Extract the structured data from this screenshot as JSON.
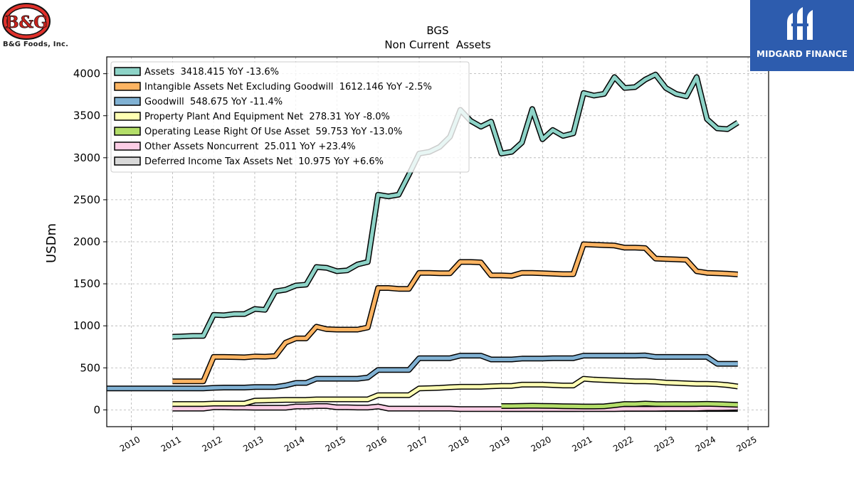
{
  "brand": {
    "left_logo_text": "B&G",
    "left_caption": "B&G Foods, Inc.",
    "right_caption": "MIDGARD FINANCE"
  },
  "chart_data": {
    "type": "line",
    "title": "BGS",
    "subtitle": "Non Current  Assets",
    "ylabel": "USDm",
    "xlabel": "",
    "xlim": [
      2009.4,
      2025.5
    ],
    "ylim": [
      -200,
      4200
    ],
    "xticks": [
      "2010",
      "2011",
      "2012",
      "2013",
      "2014",
      "2015",
      "2016",
      "2017",
      "2018",
      "2019",
      "2020",
      "2021",
      "2022",
      "2023",
      "2024",
      "2025"
    ],
    "yticks": [
      0,
      500,
      1000,
      1500,
      2000,
      2500,
      3000,
      3500,
      4000
    ],
    "grid": true,
    "legend_position": "top-left",
    "series": [
      {
        "name": "Assets  3418.415 YoY -13.6%",
        "color": "#8dd3c7",
        "x": [
          2011.0,
          2011.25,
          2011.5,
          2011.75,
          2012.0,
          2012.25,
          2012.5,
          2012.75,
          2013.0,
          2013.25,
          2013.5,
          2013.75,
          2014.0,
          2014.25,
          2014.5,
          2014.75,
          2015.0,
          2015.25,
          2015.5,
          2015.75,
          2016.0,
          2016.25,
          2016.5,
          2016.75,
          2017.0,
          2017.25,
          2017.5,
          2017.75,
          2018.0,
          2018.25,
          2018.5,
          2018.75,
          2019.0,
          2019.25,
          2019.5,
          2019.75,
          2020.0,
          2020.25,
          2020.5,
          2020.75,
          2021.0,
          2021.25,
          2021.5,
          2021.75,
          2022.0,
          2022.25,
          2022.5,
          2022.75,
          2023.0,
          2023.25,
          2023.5,
          2023.75,
          2024.0,
          2024.25,
          2024.5,
          2024.75
        ],
        "values": [
          870,
          875,
          880,
          880,
          1130,
          1125,
          1140,
          1140,
          1200,
          1190,
          1410,
          1430,
          1480,
          1490,
          1700,
          1690,
          1650,
          1660,
          1730,
          1760,
          2560,
          2540,
          2560,
          2800,
          3050,
          3070,
          3130,
          3250,
          3570,
          3440,
          3370,
          3430,
          3050,
          3070,
          3180,
          3580,
          3220,
          3330,
          3260,
          3290,
          3770,
          3740,
          3760,
          3960,
          3830,
          3840,
          3930,
          3990,
          3830,
          3760,
          3730,
          3960,
          3460,
          3350,
          3340,
          3418
        ]
      },
      {
        "name": "Intangible Assets Net Excluding Goodwill  1612.146 YoY -2.5%",
        "color": "#fdb462",
        "x": [
          2011.0,
          2011.25,
          2011.5,
          2011.75,
          2012.0,
          2012.25,
          2012.5,
          2012.75,
          2013.0,
          2013.25,
          2013.5,
          2013.75,
          2014.0,
          2014.25,
          2014.5,
          2014.75,
          2015.0,
          2015.25,
          2015.5,
          2015.75,
          2016.0,
          2016.25,
          2016.5,
          2016.75,
          2017.0,
          2017.25,
          2017.5,
          2017.75,
          2018.0,
          2018.25,
          2018.5,
          2018.75,
          2019.0,
          2019.25,
          2019.5,
          2019.75,
          2020.0,
          2020.25,
          2020.5,
          2020.75,
          2021.0,
          2021.25,
          2021.5,
          2021.75,
          2022.0,
          2022.25,
          2022.5,
          2022.75,
          2023.0,
          2023.25,
          2023.5,
          2023.75,
          2024.0,
          2024.25,
          2024.5,
          2024.75
        ],
        "values": [
          340,
          340,
          340,
          340,
          630,
          630,
          628,
          625,
          635,
          633,
          640,
          800,
          850,
          850,
          990,
          960,
          955,
          955,
          955,
          980,
          1450,
          1450,
          1440,
          1440,
          1630,
          1630,
          1625,
          1625,
          1760,
          1760,
          1755,
          1600,
          1600,
          1595,
          1630,
          1630,
          1625,
          1620,
          1615,
          1615,
          1970,
          1965,
          1960,
          1955,
          1930,
          1930,
          1925,
          1800,
          1795,
          1790,
          1785,
          1650,
          1630,
          1625,
          1620,
          1612
        ]
      },
      {
        "name": "Goodwill  548.675 YoY -11.4%",
        "color": "#80b1d3",
        "x": [
          2009.0,
          2009.25,
          2009.5,
          2009.75,
          2010.0,
          2010.25,
          2010.5,
          2010.75,
          2011.0,
          2011.25,
          2011.5,
          2011.75,
          2012.0,
          2012.25,
          2012.5,
          2012.75,
          2013.0,
          2013.25,
          2013.5,
          2013.75,
          2014.0,
          2014.25,
          2014.5,
          2014.75,
          2015.0,
          2015.25,
          2015.5,
          2015.75,
          2016.0,
          2016.25,
          2016.5,
          2016.75,
          2017.0,
          2017.25,
          2017.5,
          2017.75,
          2018.0,
          2018.25,
          2018.5,
          2018.75,
          2019.0,
          2019.25,
          2019.5,
          2019.75,
          2020.0,
          2020.25,
          2020.5,
          2020.75,
          2021.0,
          2021.25,
          2021.5,
          2021.75,
          2022.0,
          2022.25,
          2022.5,
          2022.75,
          2023.0,
          2023.25,
          2023.5,
          2023.75,
          2024.0,
          2024.25,
          2024.5,
          2024.75
        ],
        "values": [
          255,
          255,
          255,
          255,
          255,
          255,
          255,
          255,
          255,
          255,
          255,
          255,
          262,
          265,
          265,
          265,
          272,
          272,
          272,
          290,
          320,
          320,
          370,
          370,
          370,
          370,
          370,
          385,
          475,
          475,
          475,
          475,
          615,
          615,
          615,
          615,
          645,
          645,
          645,
          600,
          600,
          600,
          610,
          610,
          610,
          615,
          615,
          615,
          645,
          645,
          645,
          645,
          645,
          645,
          648,
          630,
          630,
          630,
          630,
          630,
          630,
          548,
          548,
          548
        ]
      },
      {
        "name": "Property Plant And Equipment Net  278.31 YoY -8.0%",
        "color": "#ffffb3",
        "x": [
          2011.0,
          2011.25,
          2011.5,
          2011.75,
          2012.0,
          2012.25,
          2012.5,
          2012.75,
          2013.0,
          2013.25,
          2013.5,
          2013.75,
          2014.0,
          2014.25,
          2014.5,
          2014.75,
          2015.0,
          2015.25,
          2015.5,
          2015.75,
          2016.0,
          2016.25,
          2016.5,
          2016.75,
          2017.0,
          2017.25,
          2017.5,
          2017.75,
          2018.0,
          2018.25,
          2018.5,
          2018.75,
          2019.0,
          2019.25,
          2019.5,
          2019.75,
          2020.0,
          2020.25,
          2020.5,
          2020.75,
          2021.0,
          2021.25,
          2021.5,
          2021.75,
          2022.0,
          2022.25,
          2022.5,
          2022.75,
          2023.0,
          2023.25,
          2023.5,
          2023.75,
          2024.0,
          2024.25,
          2024.5,
          2024.75
        ],
        "values": [
          70,
          70,
          70,
          70,
          75,
          75,
          75,
          75,
          110,
          112,
          115,
          118,
          118,
          120,
          125,
          125,
          125,
          125,
          125,
          125,
          175,
          175,
          175,
          175,
          255,
          258,
          262,
          270,
          275,
          275,
          275,
          280,
          285,
          285,
          300,
          300,
          300,
          295,
          290,
          290,
          370,
          360,
          355,
          350,
          345,
          340,
          340,
          335,
          325,
          320,
          315,
          310,
          310,
          305,
          295,
          278
        ]
      },
      {
        "name": "Operating Lease Right Of Use Asset  59.753 YoY -13.0%",
        "color": "#b3de69",
        "x": [
          2019.0,
          2019.25,
          2019.5,
          2019.75,
          2020.0,
          2020.25,
          2020.5,
          2020.75,
          2021.0,
          2021.25,
          2021.5,
          2021.75,
          2022.0,
          2022.25,
          2022.5,
          2022.75,
          2023.0,
          2023.25,
          2023.5,
          2023.75,
          2024.0,
          2024.25,
          2024.5,
          2024.75
        ],
        "values": [
          45,
          45,
          48,
          50,
          48,
          46,
          44,
          42,
          40,
          40,
          42,
          55,
          70,
          68,
          75,
          70,
          68,
          70,
          68,
          70,
          72,
          68,
          65,
          60
        ]
      },
      {
        "name": "Other Assets Noncurrent  25.011 YoY +23.4%",
        "color": "#fccde5",
        "x": [
          2011.0,
          2011.25,
          2011.5,
          2011.75,
          2012.0,
          2012.25,
          2012.5,
          2012.75,
          2013.0,
          2013.25,
          2013.5,
          2013.75,
          2014.0,
          2014.25,
          2014.5,
          2014.75,
          2015.0,
          2015.25,
          2015.5,
          2015.75,
          2016.0,
          2016.25,
          2016.5,
          2016.75,
          2017.0,
          2017.25,
          2017.5,
          2017.75,
          2018.0,
          2018.25,
          2018.5,
          2018.75,
          2019.0,
          2019.25,
          2019.5,
          2019.75,
          2020.0,
          2020.25,
          2020.5,
          2020.75,
          2021.0,
          2021.25,
          2021.5,
          2021.75,
          2022.0,
          2022.25,
          2022.5,
          2022.75,
          2023.0,
          2023.25,
          2023.5,
          2023.75,
          2024.0,
          2024.25,
          2024.5,
          2024.75
        ],
        "values": [
          15,
          15,
          15,
          15,
          30,
          30,
          28,
          28,
          25,
          25,
          25,
          25,
          40,
          40,
          45,
          45,
          30,
          30,
          28,
          28,
          40,
          15,
          15,
          15,
          15,
          15,
          15,
          15,
          10,
          10,
          10,
          10,
          10,
          10,
          10,
          10,
          10,
          10,
          10,
          10,
          10,
          10,
          10,
          10,
          12,
          12,
          12,
          12,
          15,
          15,
          15,
          15,
          20,
          20,
          22,
          25
        ]
      },
      {
        "name": "Deferred Income Tax Assets Net  10.975 YoY +6.6%",
        "color": "#d9d9d9",
        "x": [
          2019.0,
          2019.25,
          2019.5,
          2019.75,
          2020.0,
          2020.25,
          2020.5,
          2020.75,
          2021.0,
          2021.25,
          2021.5,
          2021.75,
          2022.0,
          2022.25,
          2022.5,
          2022.75,
          2023.0,
          2023.25,
          2023.5,
          2023.75,
          2024.0,
          2024.25,
          2024.5,
          2024.75
        ],
        "values": [
          10,
          10,
          10,
          10,
          10,
          10,
          10,
          10,
          11,
          11,
          11,
          11,
          11,
          11,
          11,
          11,
          11,
          11,
          11,
          11,
          11,
          11,
          11,
          11
        ]
      }
    ]
  }
}
